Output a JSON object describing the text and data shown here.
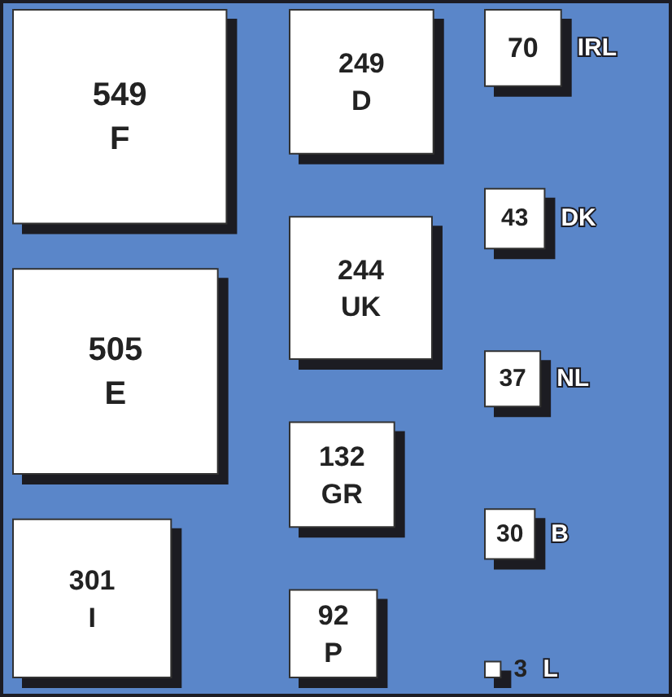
{
  "chart_data": {
    "type": "other",
    "categories": [
      "F",
      "E",
      "I",
      "D",
      "UK",
      "GR",
      "P",
      "IRL",
      "DK",
      "NL",
      "B",
      "L"
    ],
    "values": [
      549,
      505,
      301,
      249,
      244,
      132,
      92,
      70,
      43,
      37,
      30,
      3
    ],
    "color": "#ffffff",
    "data_labels": true
  }
}
